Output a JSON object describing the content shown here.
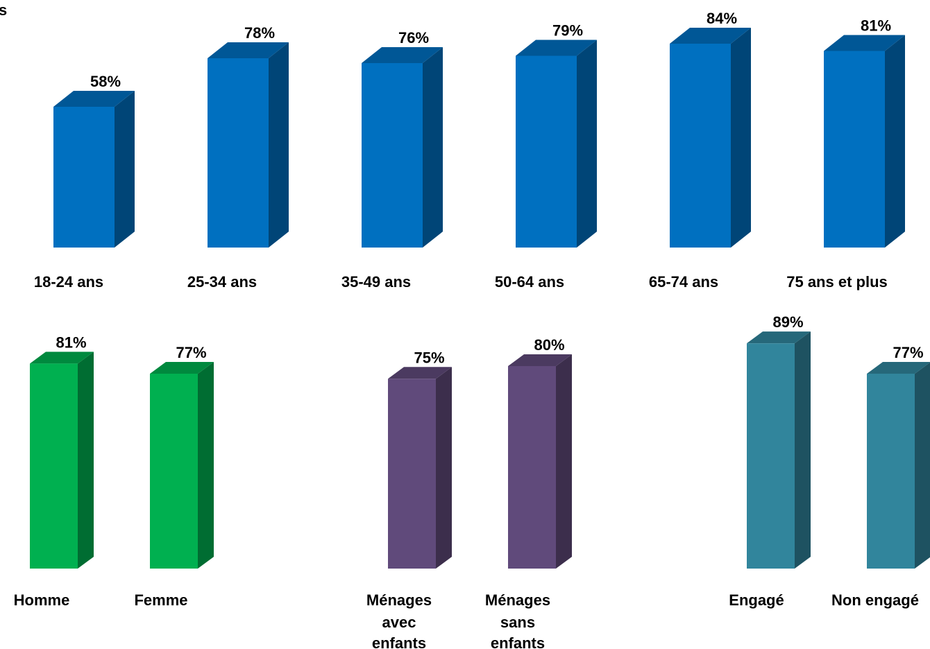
{
  "corner_text": "s",
  "chart_data": [
    {
      "type": "bar",
      "group": "age",
      "categories": [
        "18-24 ans",
        "25-34 ans",
        "35-49 ans",
        "50-64 ans",
        "65-74 ans",
        "75 ans et plus"
      ],
      "values": [
        58,
        78,
        76,
        79,
        84,
        81
      ],
      "value_labels": [
        "58%",
        "78%",
        "76%",
        "79%",
        "84%",
        "81%"
      ],
      "color": "#0070C0"
    },
    {
      "type": "bar",
      "group": "sexe",
      "categories": [
        "Homme",
        "Femme"
      ],
      "values": [
        81,
        77
      ],
      "value_labels": [
        "81%",
        "77%"
      ],
      "color": "#00B050"
    },
    {
      "type": "bar",
      "group": "menage",
      "categories": [
        [
          "Ménages",
          "avec",
          "enfants"
        ],
        [
          "Ménages",
          "sans",
          "enfants"
        ]
      ],
      "values": [
        75,
        80
      ],
      "value_labels": [
        "75%",
        "80%"
      ],
      "color": "#604A7B"
    },
    {
      "type": "bar",
      "group": "engagement",
      "categories": [
        "Engagé",
        "Non engagé"
      ],
      "values": [
        89,
        77
      ],
      "value_labels": [
        "89%",
        "77%"
      ],
      "color": "#31859C"
    }
  ]
}
